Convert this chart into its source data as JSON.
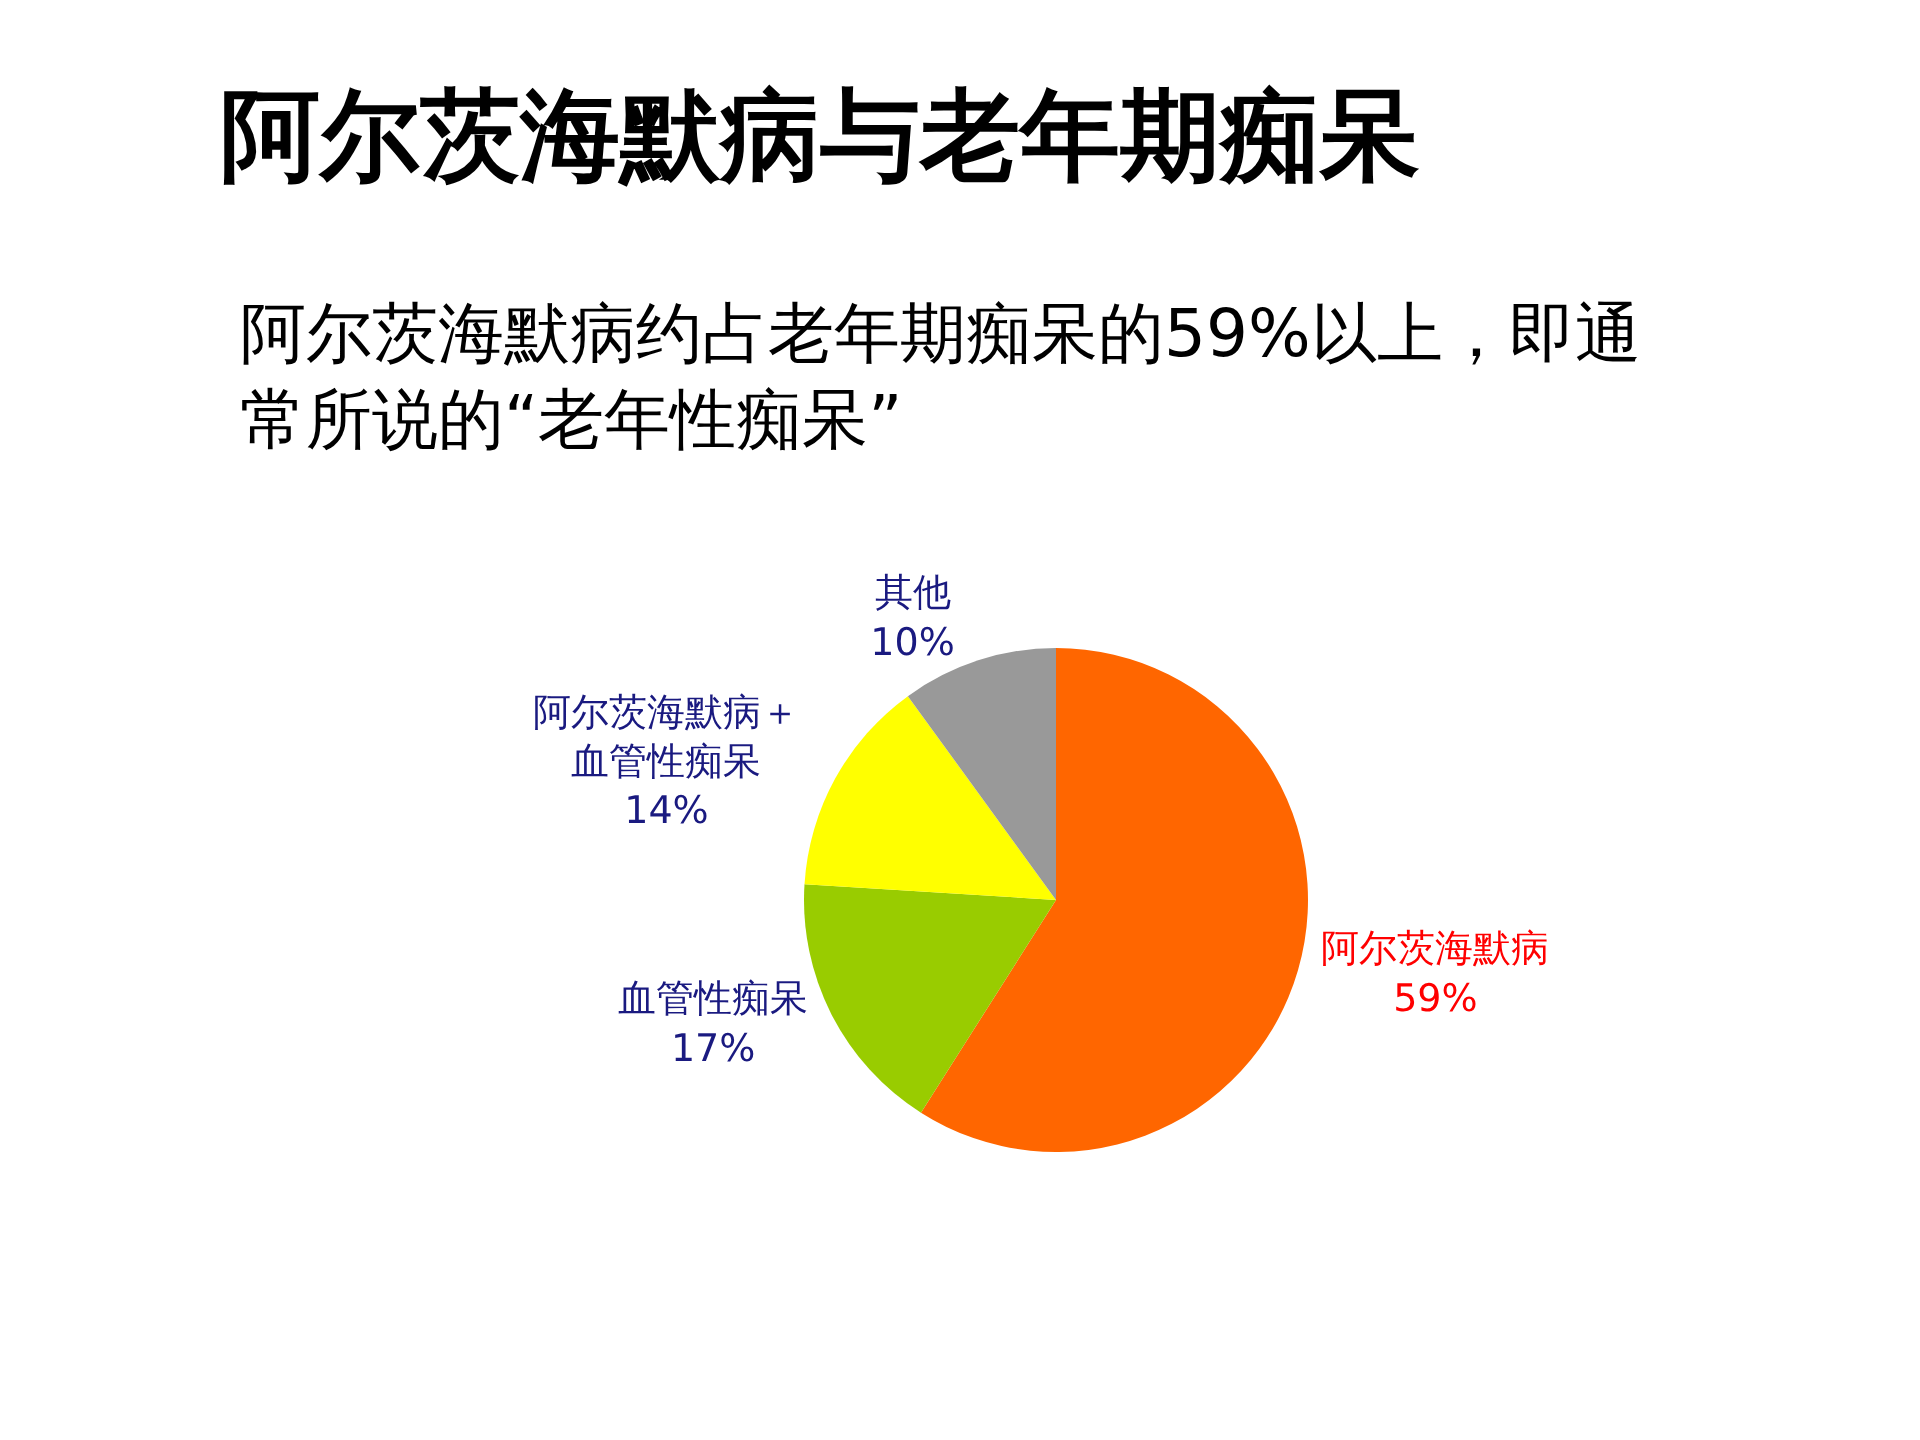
{
  "chart_data": {
    "type": "pie",
    "title": "阿尔茨海默病与老年期痴呆",
    "subtitle": "阿尔茨海默病约占老年期痴呆的59%以上，即通常所说的“老年性痴呆”",
    "categories": [
      "阿尔茨海默病",
      "血管性痴呆",
      "阿尔茨海默病＋血管性痴呆",
      "其他"
    ],
    "values": [
      59,
      17,
      14,
      10
    ],
    "value_labels": [
      "59%",
      "17%",
      "14%",
      "10%"
    ],
    "colors": [
      "#ff6600",
      "#99cc00",
      "#ffff00",
      "#999999"
    ]
  }
}
